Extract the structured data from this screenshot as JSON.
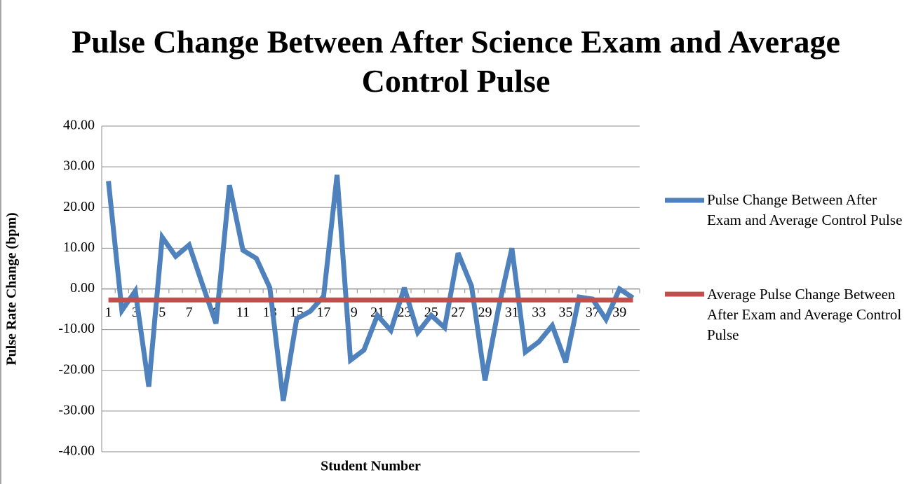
{
  "chart_data": {
    "type": "line",
    "title": "Pulse Change Between After Science Exam and Average Control Pulse",
    "x_label": "Student Number",
    "y_label": "Pulse Rate Change (bpm)",
    "categories": [
      1,
      null,
      3,
      null,
      5,
      null,
      7,
      null,
      9,
      null,
      11,
      null,
      13,
      null,
      15,
      null,
      17,
      null,
      19,
      null,
      21,
      null,
      23,
      null,
      25,
      null,
      27,
      null,
      29,
      null,
      31,
      null,
      33,
      null,
      35,
      null,
      37,
      null,
      39,
      null
    ],
    "series": [
      {
        "name": "Pulse Change Between After Exam and Average Control Pulse",
        "color": "#4f81bd",
        "values": [
          26.5,
          -5.3,
          -0.5,
          -24,
          12.7,
          8,
          10.8,
          1,
          -8.5,
          25.5,
          9.5,
          7.5,
          0.3,
          -27.5,
          -7.3,
          -5.5,
          -1.8,
          28,
          -17.5,
          -15,
          -6.5,
          -10.2,
          0.3,
          -10.7,
          -6.5,
          -9.5,
          8.8,
          0.7,
          -22.5,
          -4.8,
          10,
          -15.5,
          -13,
          -9,
          -18,
          -2,
          -2.5,
          -7.5,
          0,
          -2.2
        ]
      },
      {
        "name": "Average Pulse Change Between After Exam and Average Control Pulse",
        "color": "#c0504d",
        "values": [
          -2.7,
          -2.7,
          -2.7,
          -2.7,
          -2.7,
          -2.7,
          -2.7,
          -2.7,
          -2.7,
          -2.7,
          -2.7,
          -2.7,
          -2.7,
          -2.7,
          -2.7,
          -2.7,
          -2.7,
          -2.7,
          -2.7,
          -2.7,
          -2.7,
          -2.7,
          -2.7,
          -2.7,
          -2.7,
          -2.7,
          -2.7,
          -2.7,
          -2.7,
          -2.7,
          -2.7,
          -2.7,
          -2.7,
          -2.7,
          -2.7,
          -2.7,
          -2.7,
          -2.7,
          -2.7,
          -2.7
        ]
      }
    ],
    "ylim": [
      -40,
      40
    ],
    "yticks": [
      {
        "value": -40,
        "label": "-40.00"
      },
      {
        "value": -30,
        "label": "-30.00"
      },
      {
        "value": -20,
        "label": "-20.00"
      },
      {
        "value": -10,
        "label": "-10.00"
      },
      {
        "value": 0,
        "label": "0.00"
      },
      {
        "value": 10,
        "label": "10.00"
      },
      {
        "value": 20,
        "label": "20.00"
      },
      {
        "value": 30,
        "label": "30.00"
      },
      {
        "value": 40,
        "label": "40.00"
      }
    ],
    "grid": true,
    "legend": "right"
  }
}
